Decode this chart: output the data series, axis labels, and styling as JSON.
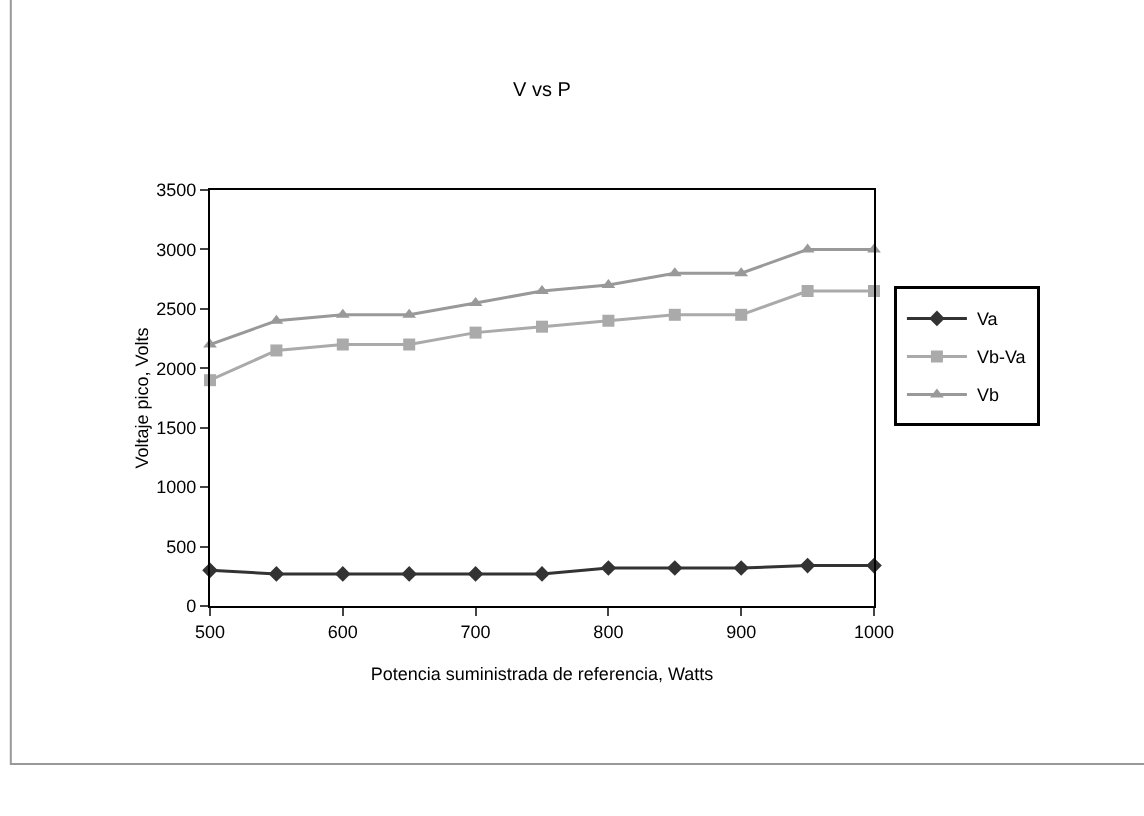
{
  "chart_data": {
    "type": "line",
    "title": "V vs P",
    "xlabel": "Potencia suministrada de referencia, Watts",
    "ylabel": "Voltaje pico, Volts",
    "x": [
      500,
      550,
      600,
      650,
      700,
      750,
      800,
      850,
      900,
      950,
      1000
    ],
    "series": [
      {
        "name": "Va",
        "color": "#333333",
        "marker": "diamond",
        "values": [
          300,
          270,
          270,
          270,
          270,
          270,
          320,
          320,
          320,
          340,
          340
        ]
      },
      {
        "name": "Vb-Va",
        "color": "#aaaaaa",
        "marker": "square",
        "values": [
          1900,
          2150,
          2200,
          2200,
          2300,
          2350,
          2400,
          2450,
          2450,
          2650,
          2650
        ]
      },
      {
        "name": "Vb",
        "color": "#999999",
        "marker": "triangle",
        "values": [
          2200,
          2400,
          2450,
          2450,
          2550,
          2650,
          2700,
          2800,
          2800,
          3000,
          3000
        ]
      }
    ],
    "xlim": [
      500,
      1000
    ],
    "xticks": [
      500,
      600,
      700,
      800,
      900,
      1000
    ],
    "ylim": [
      0,
      3500
    ],
    "yticks": [
      0,
      500,
      1000,
      1500,
      2000,
      2500,
      3000,
      3500
    ],
    "grid": false,
    "legend": "right",
    "line_style": "solid"
  }
}
